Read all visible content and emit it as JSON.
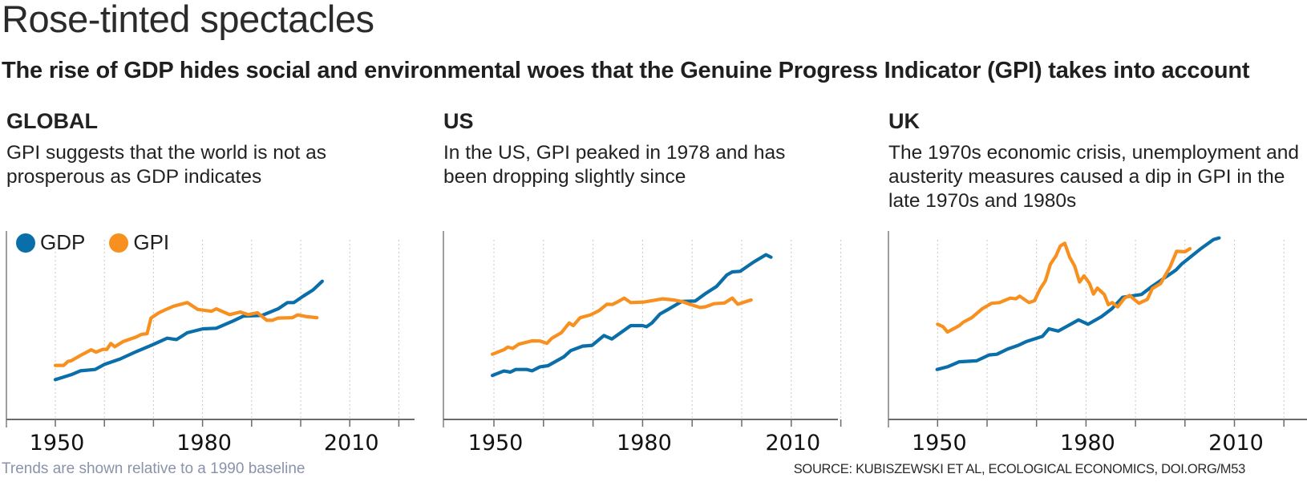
{
  "header": {
    "title": "Rose-tinted spectacles",
    "subtitle": "The rise of GDP hides social and environmental woes that the Genuine Progress Indicator (GPI) takes into account"
  },
  "legend": {
    "items": [
      {
        "label": "GDP",
        "color": "#0a6ea8"
      },
      {
        "label": "GPI",
        "color": "#f7901e"
      }
    ]
  },
  "footer": {
    "note": "Trends are shown relative to a 1990 baseline",
    "source": "SOURCE: KUBISZEWSKI ET AL, ECOLOGICAL ECONOMICS, DOI.ORG/M53"
  },
  "colors": {
    "gdp": "#0a6ea8",
    "gpi": "#f7901e",
    "axis": "#6b6b6b",
    "grid": "#c8c8c8",
    "footnote": "#8b93ab"
  },
  "chart_data": [
    {
      "type": "line",
      "id": "global",
      "title": "GLOBAL",
      "description": "GPI suggests that the world is not as prosperous as GDP indicates",
      "xlabel": "",
      "ylabel": "",
      "xlim": [
        1940,
        2020
      ],
      "ylim": [
        0,
        100
      ],
      "y_units": "relative index (unlabelled, 1990 baseline)",
      "x_ticks": [
        1940,
        1950,
        1960,
        1970,
        1980,
        1990,
        2000,
        2010,
        2020
      ],
      "x_tick_labels": [
        {
          "value": 1950,
          "label": "1950"
        },
        {
          "value": 1980,
          "label": "1980"
        },
        {
          "value": 2010,
          "label": "2010"
        }
      ],
      "grid": "vertical dotted",
      "legend": "top-left",
      "series": [
        {
          "name": "GDP",
          "color": "#0a6ea8",
          "x": [
            1950,
            1953.2,
            1955.1,
            1958.1,
            1960,
            1963.2,
            1966.5,
            1969.8,
            1972.8,
            1974.7,
            1976.9,
            1980.1,
            1982.8,
            1986.1,
            1988.3,
            1992.1,
            1995.4,
            1997.3,
            1998.6,
            2000.5,
            2002.5,
            2004.4
          ],
          "y": [
            21.1,
            23.7,
            25.8,
            26.5,
            29.2,
            32.1,
            36,
            39.6,
            43.1,
            42.4,
            46,
            48.1,
            48.4,
            52.1,
            54.8,
            55.2,
            58.7,
            62,
            62,
            65.4,
            68.7,
            73.3
          ]
        },
        {
          "name": "GPI",
          "color": "#f7901e",
          "x": [
            1950,
            1951.7,
            1952.6,
            1953.2,
            1955.1,
            1957.3,
            1958.3,
            1959.7,
            1960.5,
            1961.3,
            1962.1,
            1963.8,
            1966.5,
            1967.6,
            1968.7,
            1969.5,
            1971.1,
            1972.5,
            1974.1,
            1976.9,
            1979,
            1981.8,
            1982.8,
            1985.5,
            1987.7,
            1989.3,
            1991.2,
            1993.1,
            1994.2,
            1995.4,
            1998.3,
            1999.4,
            2001.3,
            2003.3
          ],
          "y": [
            28.7,
            28.7,
            30.8,
            31.1,
            33.9,
            37,
            35.7,
            37.2,
            37.2,
            40.3,
            38.6,
            41.3,
            43.8,
            45.2,
            45.5,
            53.8,
            56.6,
            58.3,
            60.1,
            62,
            58.4,
            57.4,
            58.7,
            55.6,
            57,
            55.6,
            56.6,
            52.6,
            52.6,
            53.8,
            54,
            55.5,
            54.5,
            54
          ]
        }
      ]
    },
    {
      "type": "line",
      "id": "us",
      "title": "US",
      "description": "In the US, GPI peaked in 1978 and has been dropping slightly since",
      "xlabel": "",
      "ylabel": "",
      "xlim": [
        1940,
        2020
      ],
      "ylim": [
        0,
        100
      ],
      "y_units": "relative index (unlabelled, 1990 baseline)",
      "x_ticks": [
        1940,
        1950,
        1960,
        1970,
        1980,
        1990,
        2000,
        2010,
        2020
      ],
      "x_tick_labels": [
        {
          "value": 1950,
          "label": "1950"
        },
        {
          "value": 1980,
          "label": "1980"
        },
        {
          "value": 2010,
          "label": "2010"
        }
      ],
      "grid": "vertical dotted",
      "series": [
        {
          "name": "GDP",
          "color": "#0a6ea8",
          "x": [
            1949.7,
            1952,
            1953.3,
            1954.4,
            1956.6,
            1957.7,
            1959.3,
            1960.9,
            1964.1,
            1965.5,
            1967.9,
            1969.8,
            1972.2,
            1973.8,
            1977.6,
            1980,
            1980.8,
            1981.9,
            1983.5,
            1985.1,
            1987.9,
            1990.6,
            1992.7,
            1994.9,
            1997,
            1998.1,
            1999.7,
            2002.4,
            2004.9,
            2005.9
          ],
          "y": [
            23.3,
            25.7,
            25.1,
            26.5,
            26.5,
            25.8,
            27.9,
            28.5,
            33.2,
            36.5,
            38.9,
            39.3,
            44.5,
            42.7,
            49.8,
            49.8,
            49.2,
            51.2,
            55.9,
            58.3,
            62.6,
            62.8,
            66.8,
            70.5,
            76.7,
            78.3,
            78.6,
            83.5,
            87.4,
            86.1
          ]
        },
        {
          "name": "GPI",
          "color": "#f7901e",
          "x": [
            1949.7,
            1952,
            1952.8,
            1953.8,
            1955,
            1957.7,
            1959.3,
            1960.7,
            1961.7,
            1963.6,
            1965.2,
            1966,
            1967.4,
            1969.5,
            1971.2,
            1972.8,
            1973.9,
            1974.9,
            1976.3,
            1977.6,
            1980.3,
            1984.1,
            1986.2,
            1987.9,
            1989.5,
            1991.6,
            1992.7,
            1994.4,
            1996.5,
            1998.1,
            1999.2,
            2001.9
          ],
          "y": [
            34.6,
            37,
            38.4,
            37.7,
            39.9,
            41.7,
            41.6,
            40.4,
            43.1,
            46,
            51.2,
            49.8,
            54,
            55.5,
            57.7,
            61.1,
            61,
            62.3,
            64.4,
            62,
            62.3,
            64,
            63.4,
            62.6,
            61.1,
            59.4,
            59.8,
            61.4,
            61.8,
            64.4,
            61.1,
            63.4
          ]
        }
      ]
    },
    {
      "type": "line",
      "id": "uk",
      "title": "UK",
      "description": "The 1970s economic crisis, unemployment and austerity measures caused a dip in GPI in the late 1970s and 1980s",
      "xlabel": "",
      "ylabel": "",
      "xlim": [
        1940,
        2020
      ],
      "ylim": [
        0,
        100
      ],
      "y_units": "relative index (unlabelled, 1990 baseline)",
      "x_ticks": [
        1940,
        1950,
        1960,
        1970,
        1980,
        1990,
        2000,
        2010,
        2020
      ],
      "x_tick_labels": [
        {
          "value": 1950,
          "label": "1950"
        },
        {
          "value": 1980,
          "label": "1980"
        },
        {
          "value": 2010,
          "label": "2010"
        }
      ],
      "grid": "vertical dotted",
      "series": [
        {
          "name": "GDP",
          "color": "#0a6ea8",
          "x": [
            1949.9,
            1952,
            1954.4,
            1957.9,
            1960.4,
            1962,
            1964.2,
            1966.3,
            1968,
            1971.2,
            1972.5,
            1974.4,
            1978.5,
            1980.4,
            1983.1,
            1985.2,
            1987.4,
            1991.2,
            1993.3,
            1998.2,
            1999.3,
            2003.1,
            2005.8,
            2006.9
          ],
          "y": [
            26.5,
            27.9,
            30.6,
            31.1,
            34.2,
            34.6,
            37.4,
            39.3,
            41.4,
            44.1,
            48.1,
            46.9,
            52.8,
            50.5,
            54.5,
            58.7,
            64.8,
            66.3,
            70.5,
            79.3,
            82.4,
            90.4,
            95.5,
            96.3
          ]
        },
        {
          "name": "GPI",
          "color": "#f7901e",
          "x": [
            1950,
            1951.1,
            1952,
            1954.4,
            1955.2,
            1956.9,
            1959,
            1960.9,
            1962.5,
            1964.7,
            1965.8,
            1966.6,
            1968.5,
            1969.6,
            1970.7,
            1971.8,
            1972.8,
            1973.9,
            1974.8,
            1975.7,
            1976.7,
            1977.7,
            1978.7,
            1979.6,
            1980.7,
            1981.5,
            1982.3,
            1983.7,
            1984.5,
            1985.3,
            1986.4,
            1987.8,
            1988.8,
            1990.7,
            1992.4,
            1993.4,
            1995.1,
            1997,
            1998.3,
            2000,
            2001
          ],
          "y": [
            50.5,
            49.2,
            46.4,
            49.8,
            51.6,
            54,
            58.7,
            61.6,
            62,
            64.4,
            64,
            65.4,
            62,
            63,
            69.1,
            73.6,
            82.4,
            86.7,
            92,
            93.5,
            86.1,
            81.4,
            72.9,
            76.2,
            72.2,
            66.5,
            69.7,
            66.3,
            60.9,
            62,
            59.7,
            64.4,
            65.8,
            61.6,
            63.7,
            69.4,
            72.2,
            81,
            89.2,
            89,
            90.6
          ]
        }
      ]
    }
  ]
}
